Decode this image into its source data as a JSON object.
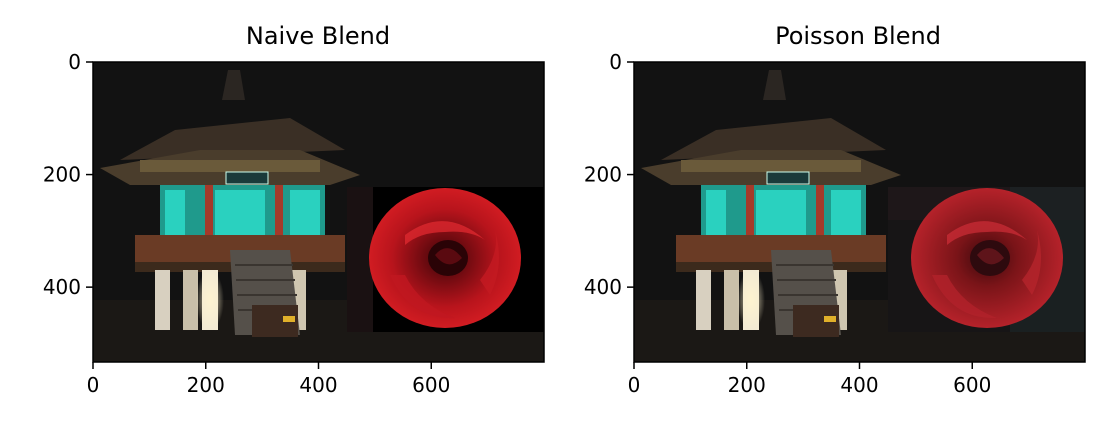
{
  "chart_data": [
    {
      "type": "image",
      "title": "Naive Blend",
      "xlim": [
        0,
        800
      ],
      "ylim": [
        533,
        0
      ],
      "x_ticks": [
        {
          "value": 0,
          "label": "0"
        },
        {
          "value": 200,
          "label": "200"
        },
        {
          "value": 400,
          "label": "400"
        },
        {
          "value": 600,
          "label": "600"
        }
      ],
      "y_ticks": [
        {
          "value": 0,
          "label": "0"
        },
        {
          "value": 200,
          "label": "200"
        },
        {
          "value": 400,
          "label": "400"
        }
      ],
      "blend_region": {
        "x": [
          450,
          800
        ],
        "y": [
          222,
          480
        ]
      },
      "blend_style": "naive"
    },
    {
      "type": "image",
      "title": "Poisson Blend",
      "xlim": [
        0,
        800
      ],
      "ylim": [
        533,
        0
      ],
      "x_ticks": [
        {
          "value": 0,
          "label": "0"
        },
        {
          "value": 200,
          "label": "200"
        },
        {
          "value": 400,
          "label": "400"
        },
        {
          "value": 600,
          "label": "600"
        }
      ],
      "y_ticks": [
        {
          "value": 0,
          "label": "0"
        },
        {
          "value": 200,
          "label": "200"
        },
        {
          "value": 400,
          "label": "400"
        }
      ],
      "blend_region": {
        "x": [
          450,
          800
        ],
        "y": [
          222,
          480
        ]
      },
      "blend_style": "poisson"
    }
  ]
}
